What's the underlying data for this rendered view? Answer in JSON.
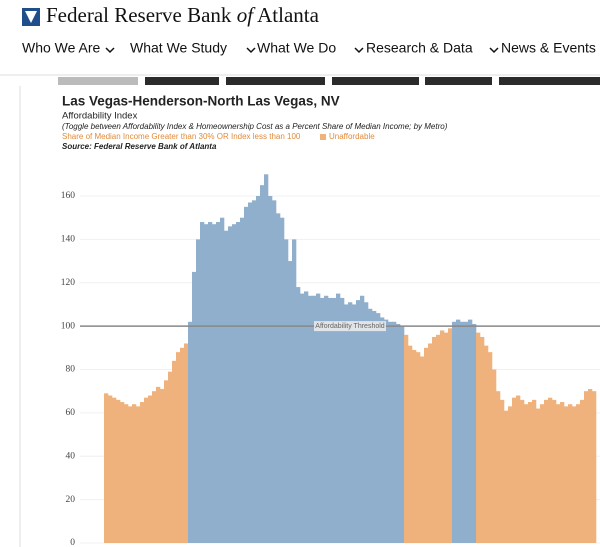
{
  "header": {
    "brand": "Federal Reserve Bank",
    "brand_of": "of",
    "brand_end": "Atlanta"
  },
  "nav": [
    "Who We Are",
    "What We Study",
    "What We Do",
    "Research & Data",
    "News & Events"
  ],
  "chart_data": {
    "type": "bar",
    "title": "Las Vegas-Henderson-North Las Vegas, NV",
    "subtitle": "Affordability Index",
    "note": "(Toggle between Affordability Index & Homeownership Cost as a Percent Share of Median Income; by Metro)",
    "legend_text": "Share of Median Income Greater than 30% OR Index less than 100",
    "legend_label": "Unaffordable",
    "source": "Source: Federal Reserve Bank of Atlanta",
    "threshold": 100,
    "threshold_label": "Affordability Threshold",
    "below_color": "#efb27c",
    "above_color": "#8fafcc",
    "ylim": [
      0,
      160
    ],
    "yticks": [
      0,
      20,
      40,
      60,
      80,
      100,
      120,
      140,
      160
    ],
    "grid": true,
    "values": [
      69,
      68,
      67,
      66,
      65,
      64,
      63,
      64,
      63,
      65,
      67,
      68,
      70,
      72,
      71,
      75,
      79,
      84,
      88,
      90,
      92,
      102,
      125,
      140,
      148,
      147,
      148,
      147,
      148,
      150,
      144,
      146,
      147,
      148,
      150,
      155,
      157,
      158,
      160,
      165,
      170,
      160,
      158,
      152,
      150,
      140,
      130,
      140,
      118,
      115,
      116,
      114,
      114,
      115,
      113,
      114,
      113,
      113,
      115,
      113,
      110,
      111,
      110,
      112,
      114,
      111,
      108,
      107,
      106,
      104,
      103,
      102,
      102,
      101,
      100,
      96,
      91,
      89,
      88,
      86,
      90,
      92,
      95,
      96,
      98,
      97,
      99,
      102,
      103,
      102,
      102,
      103,
      101,
      97,
      95,
      91,
      88,
      80,
      70,
      66,
      61,
      63,
      67,
      68,
      66,
      64,
      65,
      66,
      62,
      64,
      66,
      67,
      66,
      64,
      65,
      63,
      64,
      63,
      64,
      66,
      70,
      71,
      70
    ]
  }
}
